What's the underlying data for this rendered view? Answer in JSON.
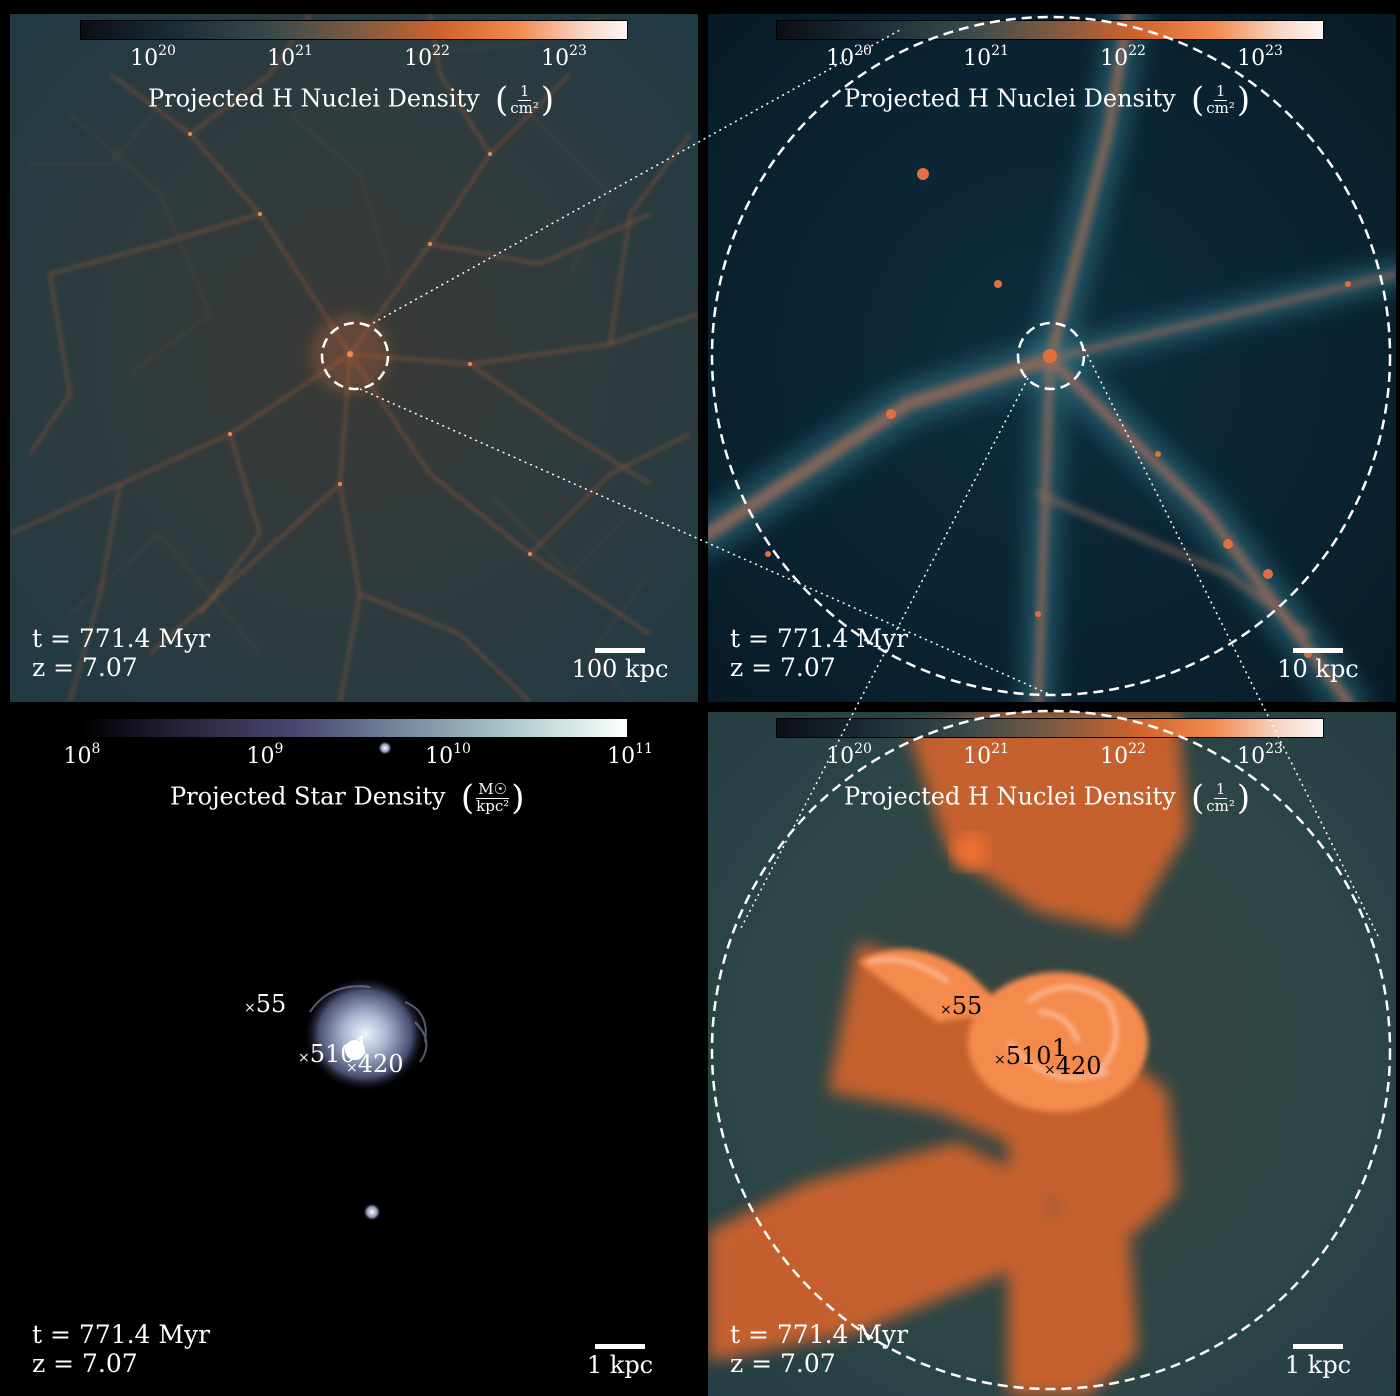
{
  "colorbar_hydrogen": {
    "ticks": [
      {
        "base": "10",
        "exp": "20"
      },
      {
        "base": "10",
        "exp": "21"
      },
      {
        "base": "10",
        "exp": "22"
      },
      {
        "base": "10",
        "exp": "23"
      }
    ],
    "label": "Projected H Nuclei Density",
    "unit_num": "1",
    "unit_den": "cm²"
  },
  "colorbar_stars": {
    "ticks": [
      {
        "base": "10",
        "exp": "8"
      },
      {
        "base": "10",
        "exp": "9"
      },
      {
        "base": "10",
        "exp": "10"
      },
      {
        "base": "10",
        "exp": "11"
      }
    ],
    "label": "Projected Star Density",
    "unit_num": "M☉",
    "unit_den": "kpc²"
  },
  "time_label": "t = 771.4 Myr",
  "redshift_label": "z = 7.07",
  "panels": {
    "top_left": {
      "scale": "100 kpc"
    },
    "top_right": {
      "scale": "10 kpc"
    },
    "bottom_left": {
      "scale": "1 kpc"
    },
    "bottom_right": {
      "scale": "1 kpc"
    }
  },
  "markers": [
    "55",
    "510",
    "1",
    "420"
  ],
  "colors": {
    "filament": "#e0703a",
    "filament_bright": "#f7a070",
    "void_top_left": "#2e3b3e",
    "void_top_right": "#0a2433",
    "star_glow": "#c8d4e8",
    "gas_orange": "#f07030"
  }
}
